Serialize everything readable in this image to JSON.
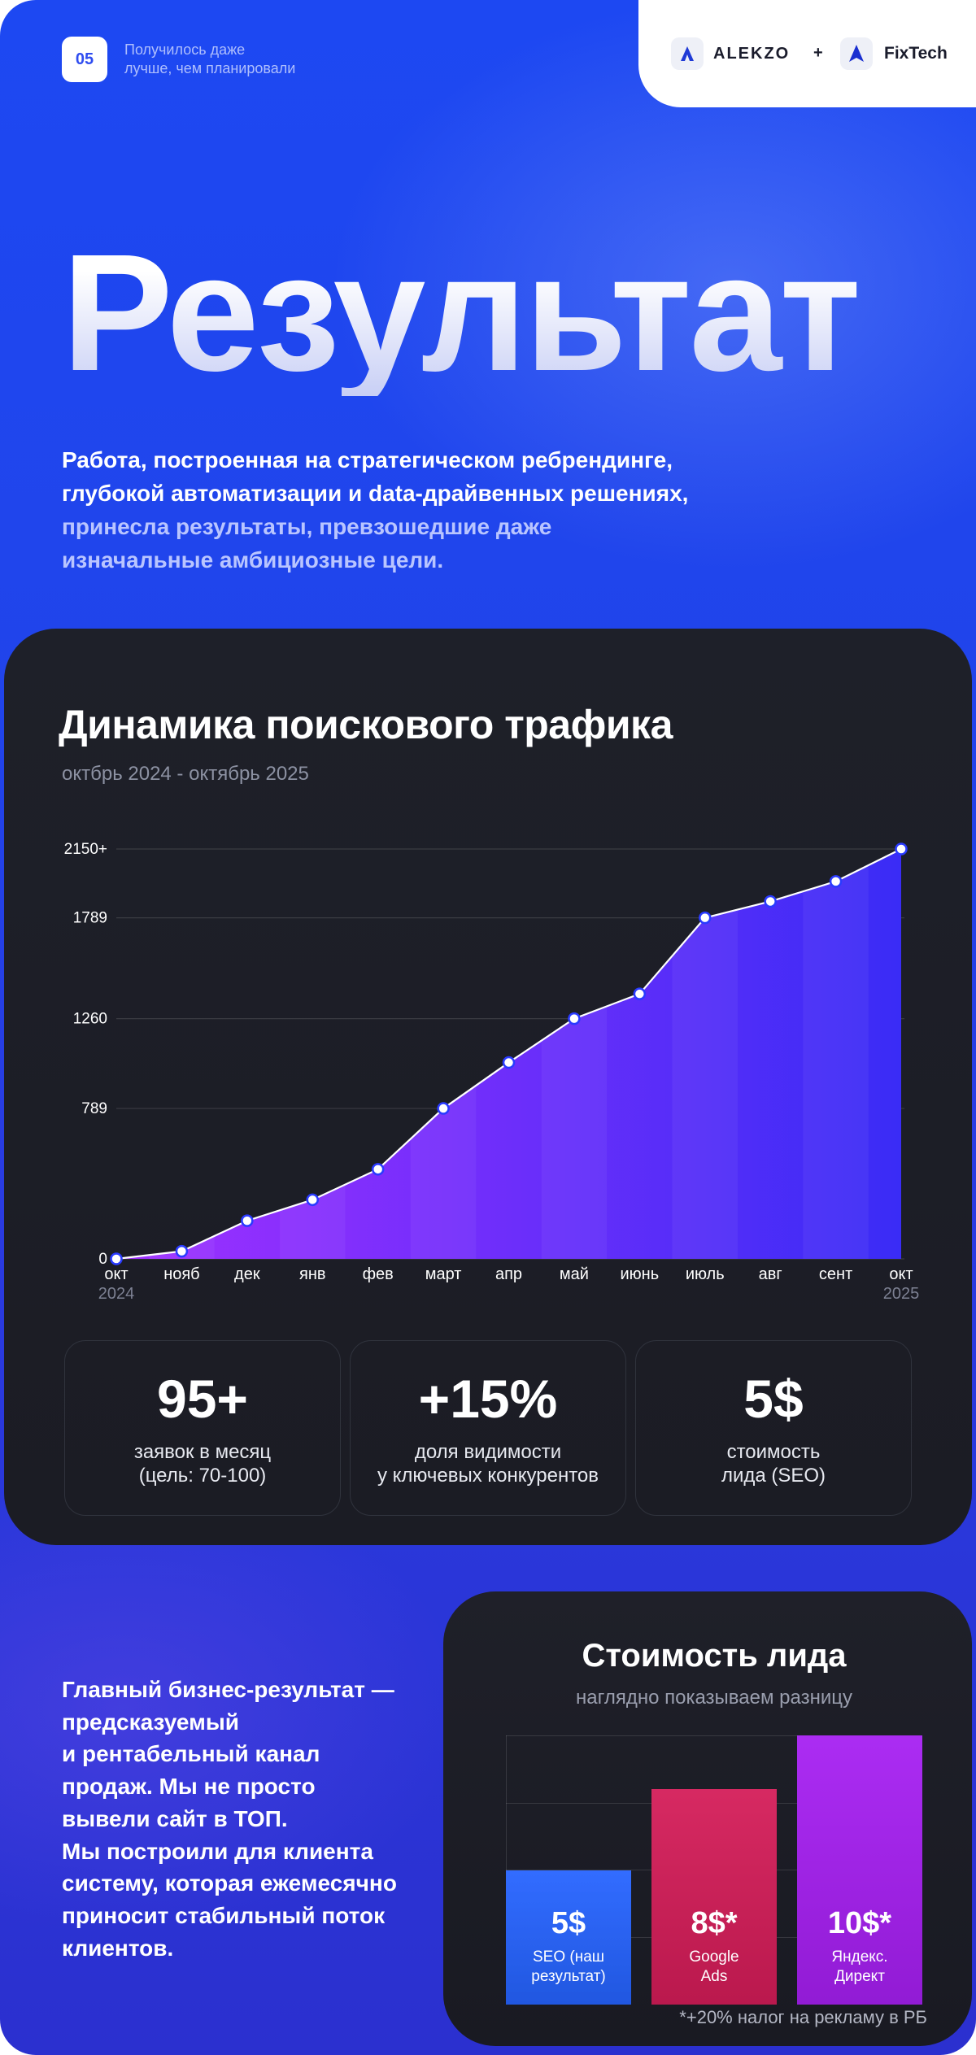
{
  "header": {
    "badge": "05",
    "note": "Получилось даже\nлучше, чем планировали",
    "logo_left": "ALEKZO",
    "plus": "+",
    "logo_right": "FixTech"
  },
  "hero": {
    "title": "Результат",
    "lead": "Работа, построенная на стратегическом ребрендинге,\nглубокой автоматизации и data-драйвенных решениях,",
    "rest": "принесла результаты, превзошедшие даже\nизначальные амбициозные цели."
  },
  "chart_data": [
    {
      "type": "area",
      "title": "Динамика поискового трафика",
      "subtitle": "октбрь 2024 - октябрь 2025",
      "categories": [
        "окт",
        "нояб",
        "дек",
        "янв",
        "фев",
        "март",
        "апр",
        "май",
        "июнь",
        "июль",
        "авг",
        "сент",
        "окт"
      ],
      "x_sublabels": [
        "2024",
        null,
        null,
        null,
        null,
        null,
        null,
        null,
        null,
        null,
        null,
        null,
        "2025"
      ],
      "values": [
        0,
        40,
        200,
        310,
        470,
        789,
        1030,
        1260,
        1390,
        1789,
        1875,
        1980,
        2150
      ],
      "ylim": [
        0,
        2150
      ],
      "yticks": [
        0,
        789,
        1260,
        1789,
        {
          "value": 2150,
          "label": "2150+"
        }
      ],
      "grid": true,
      "line_color": "#ffffff",
      "fill_colors": [
        "#a030ff",
        "#3a2cf6"
      ]
    },
    {
      "type": "bar",
      "title": "Стоимость лида",
      "subtitle": "наглядно показываем разницу",
      "categories": [
        "SEO (наш\nрезультат)",
        "Google\nAds",
        "Яндекс.\nДирект"
      ],
      "values": [
        5,
        8,
        10
      ],
      "value_labels": [
        "5$",
        "8$*",
        "10$*"
      ],
      "colors": [
        "#2563ff",
        "#d41c58",
        "#a61ff2"
      ],
      "ylim": [
        0,
        10
      ],
      "footnote": "*+20% налог на рекламу в РБ"
    }
  ],
  "stats": [
    {
      "value": "95+",
      "label": "заявок в месяц\n(цель: 70-100)"
    },
    {
      "value": "+15%",
      "label": "доля видимости\nу ключевых конкурентов"
    },
    {
      "value": "5$",
      "label": "стоимость\nлида (SEO)"
    }
  ],
  "summary": {
    "text": "Главный бизнес-результат —\nпредсказуемый\nи рентабельный канал\nпродаж. Мы не просто\nвывели сайт в ТОП.\nМы построили для клиента\nсистему, которая ежемесячно\nприносит стабильный поток\nклиентов."
  }
}
